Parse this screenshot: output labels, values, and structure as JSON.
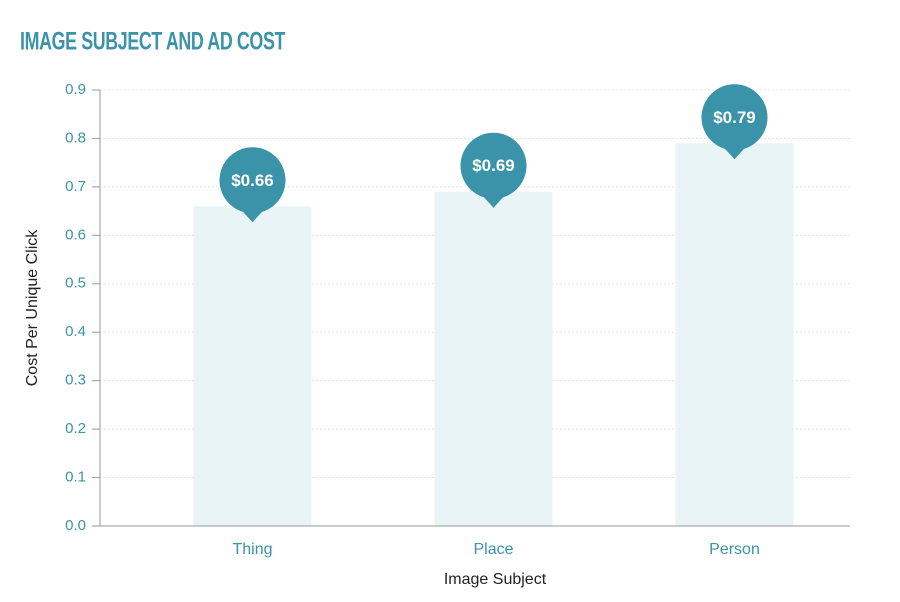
{
  "chart_data": {
    "type": "bar",
    "title": "IMAGE SUBJECT AND AD COST",
    "x_label": "Image Subject",
    "y_label": "Cost Per Unique Click",
    "categories": [
      "Thing",
      "Place",
      "Person"
    ],
    "values": [
      0.66,
      0.69,
      0.79
    ],
    "value_labels": [
      "$0.66",
      "$0.69",
      "$0.79"
    ],
    "color": "#e9f4f7",
    "label_color": "#3a93a8",
    "ylim": [
      0,
      0.9
    ],
    "yticks": [
      {
        "value": 0,
        "label": "0.0"
      },
      0.1,
      0.2,
      0.3,
      0.4,
      0.5,
      0.6,
      0.7,
      0.8,
      0.9
    ],
    "grid": true
  }
}
